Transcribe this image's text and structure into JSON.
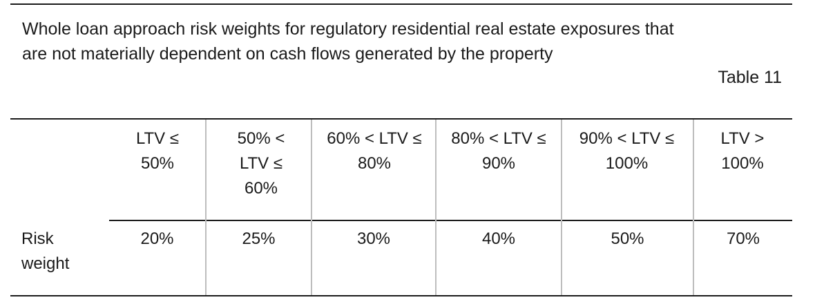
{
  "caption": "Whole loan approach risk weights for regulatory residential real estate exposures that are not materially dependent on cash flows generated by the property",
  "table_number": "Table 11",
  "table": {
    "columns": [
      {
        "label": "LTV ≤ 50%",
        "value": "20%"
      },
      {
        "label": "50% < LTV ≤ 60%",
        "value": "25%"
      },
      {
        "label": "60% < LTV ≤ 80%",
        "value": "30%"
      },
      {
        "label": "80% < LTV ≤ 90%",
        "value": "40%"
      },
      {
        "label": "90% < LTV ≤ 100%",
        "value": "50%"
      },
      {
        "label": "LTV > 100%",
        "value": "70%"
      }
    ],
    "row_label": "Risk weight"
  }
}
